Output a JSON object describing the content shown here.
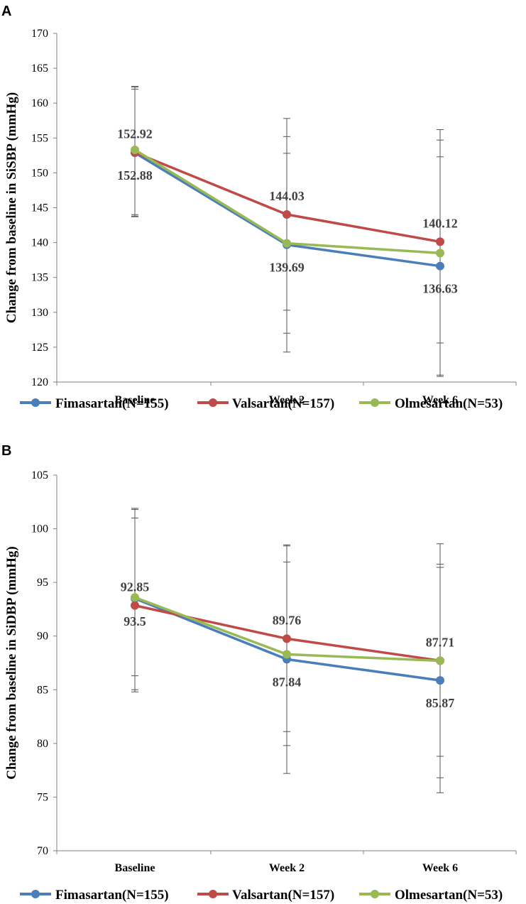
{
  "chart_data": [
    {
      "panel_label": "A",
      "type": "line",
      "ylabel": "Change from baseline in SiSBP (mmHg)",
      "ylim": [
        120,
        170
      ],
      "ystep": 5,
      "categories": [
        "Baseline",
        "Week 2",
        "Week 6"
      ],
      "series": [
        {
          "name": "Fimasartan(N=155)",
          "color": "#4A7EBB",
          "values": [
            152.88,
            139.69,
            136.63
          ],
          "err_low": [
            143.8,
            124.3,
            121.0
          ],
          "err_high": [
            162.3,
            155.2,
            152.3
          ]
        },
        {
          "name": "Valsartan(N=157)",
          "color": "#BE4B48",
          "values": [
            152.92,
            144.03,
            140.12
          ],
          "err_low": [
            144.0,
            130.3,
            125.6
          ],
          "err_high": [
            162.0,
            157.8,
            156.2
          ]
        },
        {
          "name": "Olmesartan(N=53)",
          "color": "#98B954",
          "values": [
            153.3,
            139.9,
            138.5
          ],
          "err_low": [
            143.7,
            127.0,
            120.8
          ],
          "err_high": [
            162.4,
            152.8,
            154.7
          ]
        }
      ],
      "data_labels": [
        {
          "text": "152.92",
          "series": 1,
          "point": 0,
          "pos": "above"
        },
        {
          "text": "152.88",
          "series": 0,
          "point": 0,
          "pos": "below"
        },
        {
          "text": "144.03",
          "series": 1,
          "point": 1,
          "pos": "above"
        },
        {
          "text": "139.69",
          "series": 0,
          "point": 1,
          "pos": "below"
        },
        {
          "text": "140.12",
          "series": 1,
          "point": 2,
          "pos": "above"
        },
        {
          "text": "136.63",
          "series": 0,
          "point": 2,
          "pos": "below"
        }
      ],
      "legend": "bottom"
    },
    {
      "panel_label": "B",
      "type": "line",
      "ylabel": "Change from baseline in SiDBP (mmHg)",
      "ylim": [
        70,
        105
      ],
      "ystep": 5,
      "categories": [
        "Baseline",
        "Week 2",
        "Week 6"
      ],
      "series": [
        {
          "name": "Fimasartan(N=155)",
          "color": "#4A7EBB",
          "values": [
            93.5,
            87.84,
            85.87
          ],
          "err_low": [
            85.0,
            79.8,
            76.8
          ],
          "err_high": [
            101.0,
            96.9,
            96.4
          ]
        },
        {
          "name": "Valsartan(N=157)",
          "color": "#BE4B48",
          "values": [
            92.85,
            89.76,
            87.71
          ],
          "err_low": [
            84.8,
            81.1,
            78.8
          ],
          "err_high": [
            101.8,
            98.5,
            96.7
          ]
        },
        {
          "name": "Olmesartan(N=53)",
          "color": "#98B954",
          "values": [
            93.6,
            88.3,
            87.7
          ],
          "err_low": [
            86.3,
            77.2,
            75.4
          ],
          "err_high": [
            101.9,
            98.4,
            98.6
          ]
        }
      ],
      "data_labels": [
        {
          "text": "92.85",
          "series": 1,
          "point": 0,
          "pos": "above"
        },
        {
          "text": "93.5",
          "series": 0,
          "point": 0,
          "pos": "below"
        },
        {
          "text": "89.76",
          "series": 1,
          "point": 1,
          "pos": "above"
        },
        {
          "text": "87.84",
          "series": 0,
          "point": 1,
          "pos": "below"
        },
        {
          "text": "87.71",
          "series": 1,
          "point": 2,
          "pos": "above"
        },
        {
          "text": "85.87",
          "series": 0,
          "point": 2,
          "pos": "below"
        }
      ],
      "legend": "bottom"
    }
  ]
}
